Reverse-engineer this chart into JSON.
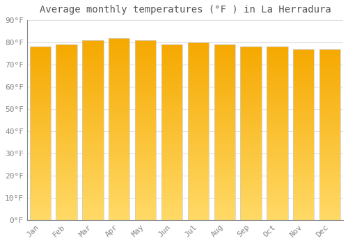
{
  "title": "Average monthly temperatures (°F ) in La Herradura",
  "months": [
    "Jan",
    "Feb",
    "Mar",
    "Apr",
    "May",
    "Jun",
    "Jul",
    "Aug",
    "Sep",
    "Oct",
    "Nov",
    "Dec"
  ],
  "values": [
    78,
    79,
    81,
    82,
    81,
    79,
    80,
    79,
    78,
    78,
    77,
    77
  ],
  "bar_color_top": "#F5A800",
  "bar_color_bottom": "#FFD966",
  "ylim": [
    0,
    90
  ],
  "yticks": [
    0,
    10,
    20,
    30,
    40,
    50,
    60,
    70,
    80,
    90
  ],
  "ytick_labels": [
    "0°F",
    "10°F",
    "20°F",
    "30°F",
    "40°F",
    "50°F",
    "60°F",
    "70°F",
    "80°F",
    "90°F"
  ],
  "background_color": "#FFFFFF",
  "grid_color": "#E0E0E0",
  "title_fontsize": 10,
  "tick_fontsize": 8,
  "tick_color": "#888888",
  "font_family": "monospace",
  "bar_width": 0.8,
  "bar_edge_color": "#CCCCCC",
  "bar_edge_width": 0.5
}
